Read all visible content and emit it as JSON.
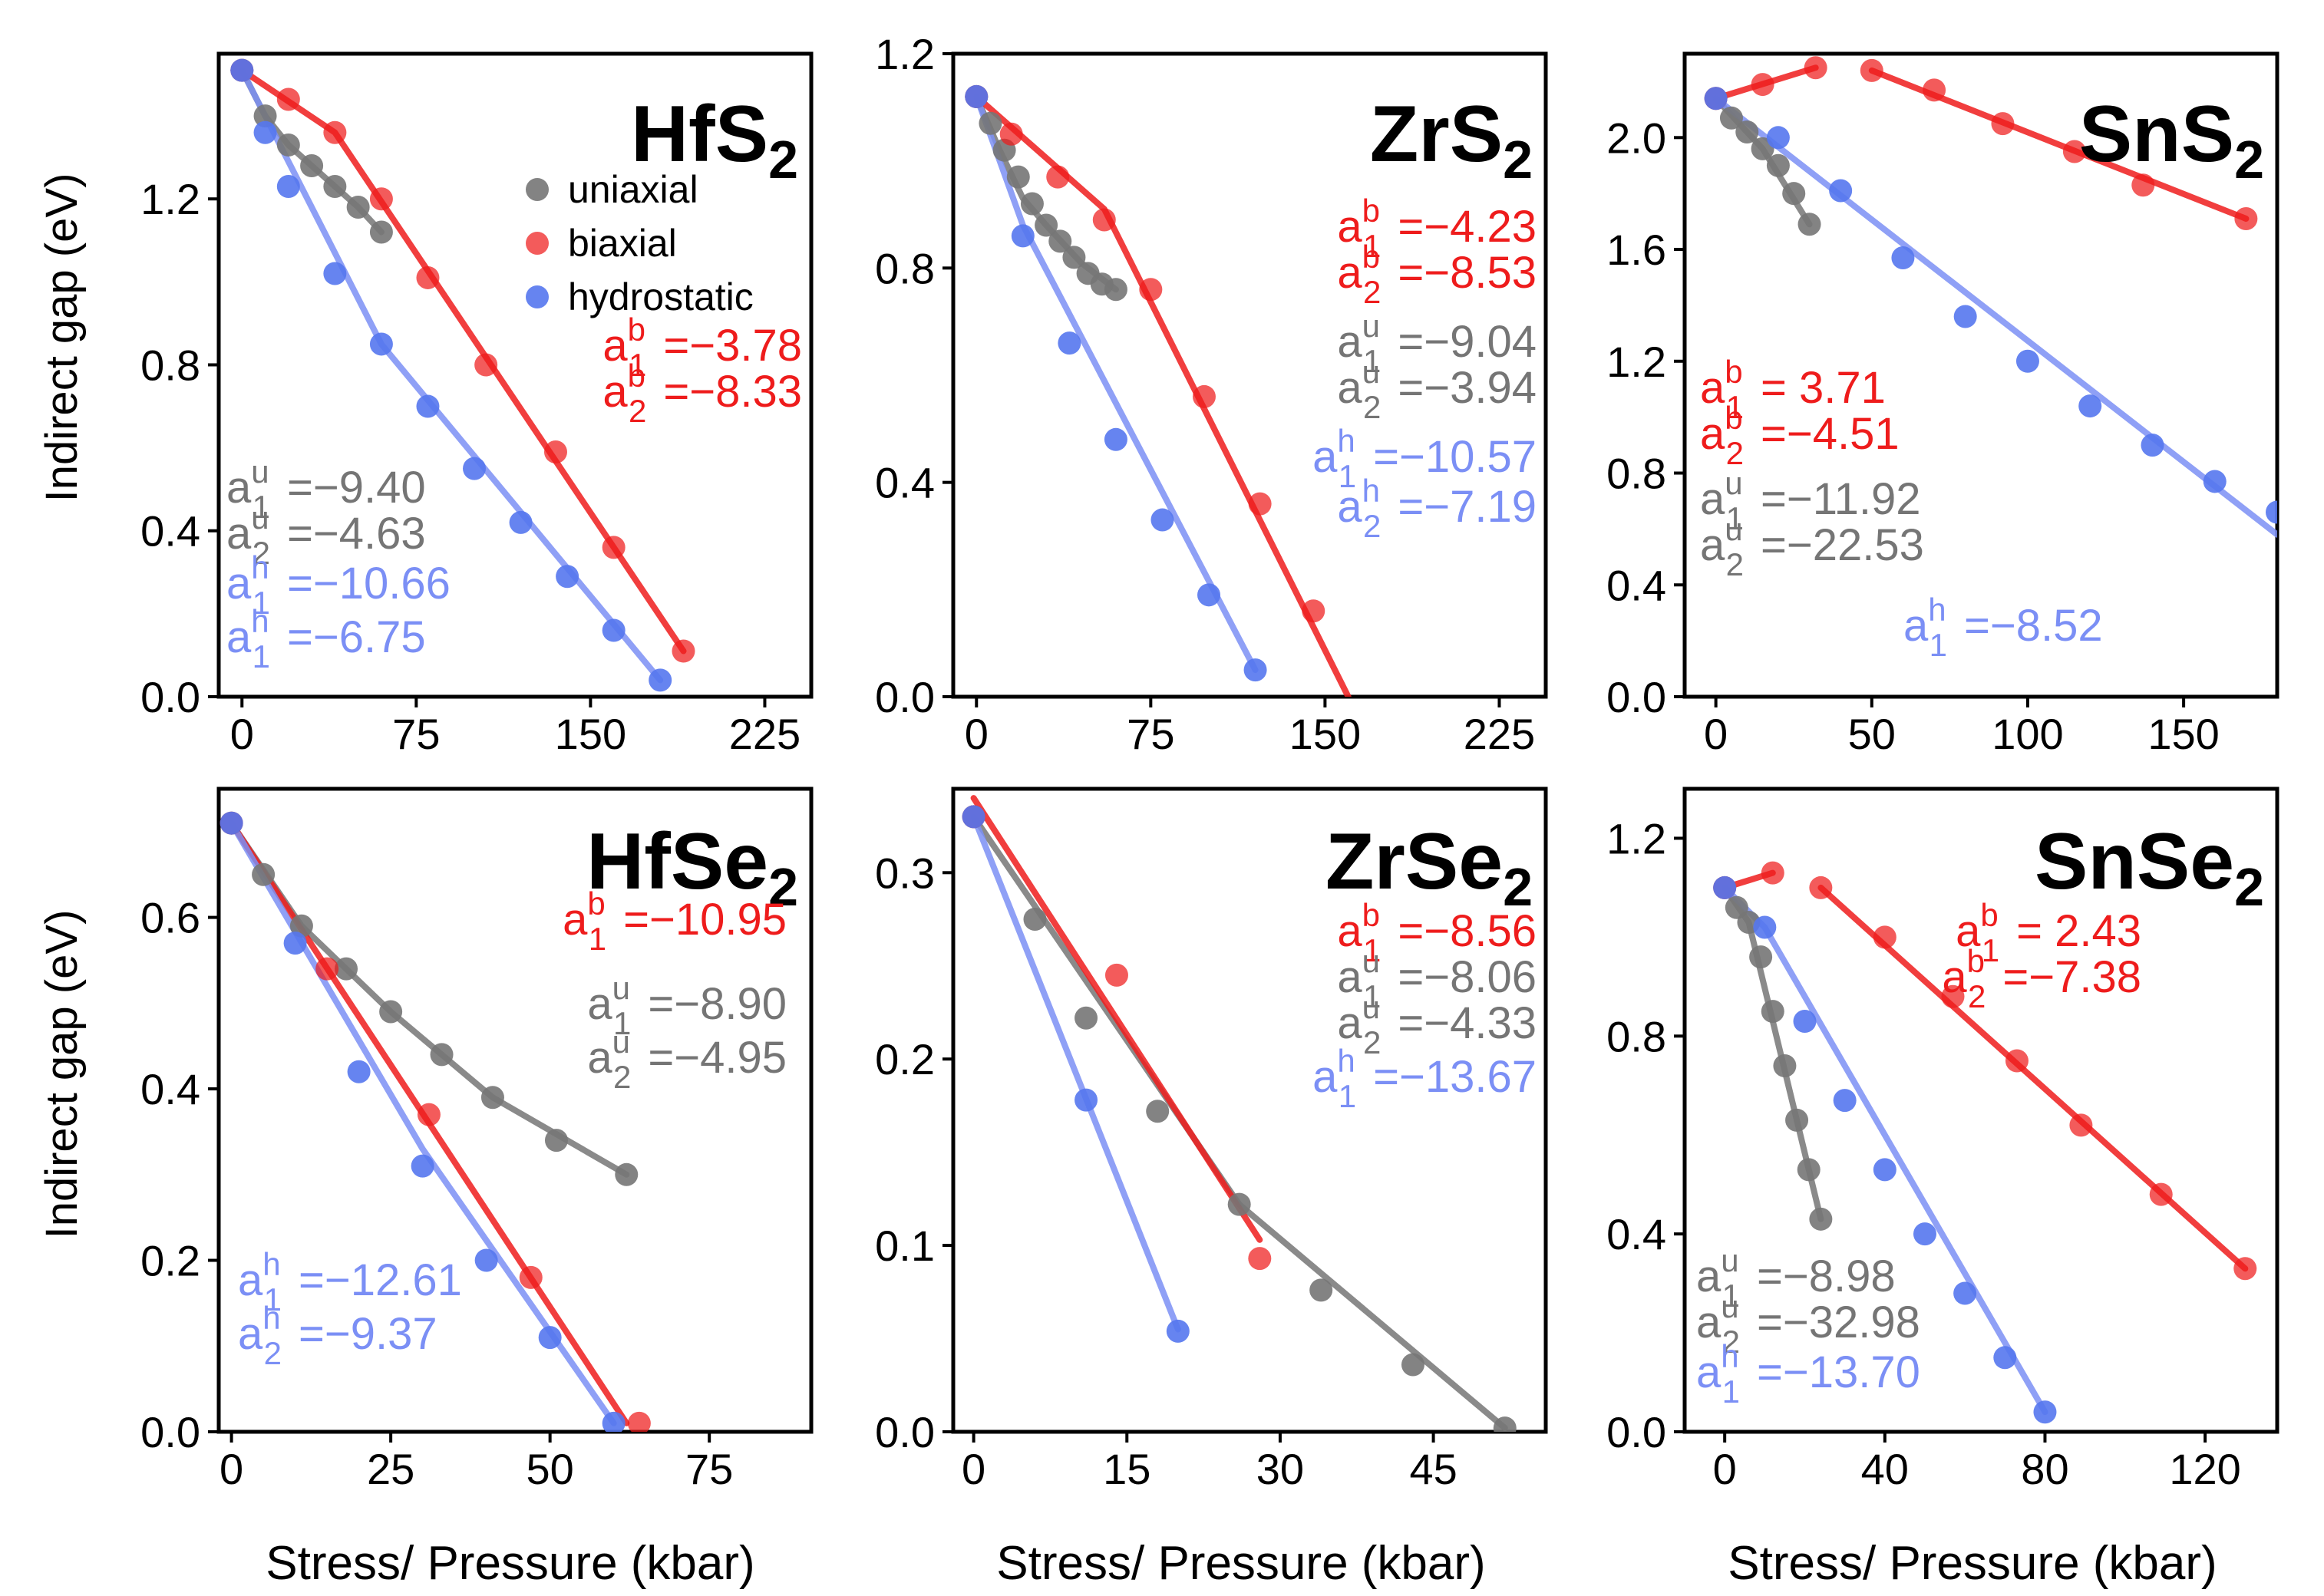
{
  "figure": {
    "ylabel": "Indirect gap (eV)",
    "xlabel": "Stress/ Pressure (kbar)",
    "legend": {
      "uniaxial": "uniaxial",
      "biaxial": "biaxial",
      "hydrostatic": "hydrostatic"
    }
  },
  "colors": {
    "uniaxial": "#757575",
    "biaxial": "#ee1c1c",
    "hydrostatic": "#5577ee",
    "hydro_fit": "#7b8ff5"
  },
  "chart_data": [
    {
      "type": "scatter",
      "title": "HfS2",
      "title_base": "HfS",
      "title_sub": "2",
      "xlabel": "Stress/ Pressure (kbar)",
      "ylabel": "Indirect gap (eV)",
      "xlim": [
        -10,
        245
      ],
      "ylim": [
        0.0,
        1.55
      ],
      "xticks": [
        0,
        75,
        150,
        225
      ],
      "yticks": [
        0.0,
        0.4,
        0.8,
        1.2
      ],
      "legend": true,
      "series": [
        {
          "name": "uniaxial",
          "x": [
            0,
            10,
            20,
            30,
            40,
            50,
            60
          ],
          "y": [
            1.51,
            1.4,
            1.33,
            1.28,
            1.23,
            1.18,
            1.12
          ],
          "fit": [
            [
              0,
              1.51
            ],
            [
              10,
              1.4
            ],
            [
              20,
              1.33
            ],
            [
              30,
              1.28
            ],
            [
              40,
              1.23
            ],
            [
              50,
              1.18
            ],
            [
              60,
              1.12
            ]
          ]
        },
        {
          "name": "biaxial",
          "x": [
            0,
            20,
            40,
            60,
            80,
            105,
            135,
            160,
            190
          ],
          "y": [
            1.51,
            1.44,
            1.36,
            1.2,
            1.01,
            0.8,
            0.59,
            0.36,
            0.11
          ],
          "fit": [
            [
              0,
              1.51
            ],
            [
              40,
              1.36
            ],
            [
              190,
              0.11
            ]
          ]
        },
        {
          "name": "hydrostatic",
          "x": [
            0,
            10,
            20,
            40,
            60,
            80,
            100,
            120,
            140,
            160,
            180
          ],
          "y": [
            1.51,
            1.36,
            1.23,
            1.02,
            0.85,
            0.7,
            0.55,
            0.42,
            0.29,
            0.16,
            0.04
          ],
          "fit": [
            [
              0,
              1.51
            ],
            [
              60,
              0.85
            ],
            [
              180,
              0.04
            ]
          ]
        }
      ],
      "annotations": [
        {
          "sym": "a",
          "sup": "b",
          "sub": "1",
          "value": "=−3.78",
          "series": "biaxial"
        },
        {
          "sym": "a",
          "sup": "b",
          "sub": "2",
          "value": "=−8.33",
          "series": "biaxial"
        },
        {
          "sym": "a",
          "sup": "u",
          "sub": "1",
          "value": "=−9.40",
          "series": "uniaxial"
        },
        {
          "sym": "a",
          "sup": "u",
          "sub": "2",
          "value": "=−4.63",
          "series": "uniaxial"
        },
        {
          "sym": "a",
          "sup": "h",
          "sub": "1",
          "value": "=−10.66",
          "series": "hydrostatic"
        },
        {
          "sym": "a",
          "sup": "h",
          "sub": "1",
          "value": "=−6.75",
          "series": "hydrostatic"
        }
      ]
    },
    {
      "type": "scatter",
      "title": "ZrS2",
      "title_base": "ZrS",
      "title_sub": "2",
      "xlabel": "Stress/ Pressure (kbar)",
      "ylabel": "Indirect gap (eV)",
      "xlim": [
        -10,
        245
      ],
      "ylim": [
        0.0,
        1.2
      ],
      "xticks": [
        0,
        75,
        150,
        225
      ],
      "yticks": [
        0.0,
        0.4,
        0.8,
        1.2
      ],
      "legend": false,
      "series": [
        {
          "name": "uniaxial",
          "x": [
            0,
            6,
            12,
            18,
            24,
            30,
            36,
            42,
            48,
            54,
            60
          ],
          "y": [
            1.12,
            1.07,
            1.02,
            0.97,
            0.92,
            0.88,
            0.85,
            0.82,
            0.79,
            0.77,
            0.76
          ],
          "fit": [
            [
              0,
              1.12
            ],
            [
              10,
              1.02
            ],
            [
              20,
              0.93
            ],
            [
              30,
              0.88
            ],
            [
              45,
              0.81
            ],
            [
              60,
              0.76
            ]
          ]
        },
        {
          "name": "biaxial",
          "x": [
            0,
            15,
            35,
            55,
            75,
            98,
            122,
            145
          ],
          "y": [
            1.12,
            1.05,
            0.97,
            0.89,
            0.76,
            0.56,
            0.36,
            0.16
          ],
          "fit": [
            [
              0,
              1.12
            ],
            [
              55,
              0.91
            ],
            [
              160,
              0.0
            ]
          ]
        },
        {
          "name": "hydrostatic",
          "x": [
            0,
            20,
            40,
            60,
            80,
            100,
            120
          ],
          "y": [
            1.12,
            0.86,
            0.66,
            0.48,
            0.33,
            0.19,
            0.05
          ],
          "fit": [
            [
              0,
              1.12
            ],
            [
              20,
              0.88
            ],
            [
              120,
              0.05
            ]
          ]
        }
      ],
      "annotations": [
        {
          "sym": "a",
          "sup": "b",
          "sub": "1",
          "value": "=−4.23",
          "series": "biaxial"
        },
        {
          "sym": "a",
          "sup": "b",
          "sub": "2",
          "value": "=−8.53",
          "series": "biaxial"
        },
        {
          "sym": "a",
          "sup": "u",
          "sub": "1",
          "value": "=−9.04",
          "series": "uniaxial"
        },
        {
          "sym": "a",
          "sup": "u",
          "sub": "2",
          "value": "=−3.94",
          "series": "uniaxial"
        },
        {
          "sym": "a",
          "sup": "h",
          "sub": "1",
          "value": "=−10.57",
          "series": "hydrostatic"
        },
        {
          "sym": "a",
          "sup": "h",
          "sub": "2",
          "value": "=−7.19",
          "series": "hydrostatic"
        }
      ]
    },
    {
      "type": "scatter",
      "title": "SnS2",
      "title_base": "SnS",
      "title_sub": "2",
      "xlabel": "Stress/ Pressure (kbar)",
      "ylabel": "Indirect gap (eV)",
      "xlim": [
        -10,
        180
      ],
      "ylim": [
        0.0,
        2.3
      ],
      "xticks": [
        0,
        50,
        100,
        150
      ],
      "yticks": [
        0.0,
        0.4,
        0.8,
        1.2,
        1.6,
        2.0
      ],
      "legend": false,
      "series": [
        {
          "name": "uniaxial",
          "x": [
            0,
            5,
            10,
            15,
            20,
            25,
            30
          ],
          "y": [
            2.14,
            2.07,
            2.02,
            1.96,
            1.9,
            1.8,
            1.69
          ],
          "fit": [
            [
              0,
              2.14
            ],
            [
              15,
              1.96
            ],
            [
              30,
              1.69
            ]
          ]
        },
        {
          "name": "biaxial",
          "x": [
            0,
            15,
            32,
            50,
            70,
            92,
            115,
            137,
            170
          ],
          "y": [
            2.14,
            2.19,
            2.25,
            2.24,
            2.17,
            2.05,
            1.95,
            1.83,
            1.71
          ],
          "fit": [
            [
              0,
              2.14
            ],
            [
              32,
              2.25
            ]
          ],
          "fit2": [
            [
              50,
              2.24
            ],
            [
              170,
              1.71
            ]
          ]
        },
        {
          "name": "hydrostatic",
          "x": [
            0,
            20,
            40,
            60,
            80,
            100,
            120,
            140,
            160,
            180
          ],
          "y": [
            2.14,
            2.0,
            1.81,
            1.57,
            1.36,
            1.2,
            1.04,
            0.9,
            0.77,
            0.66
          ],
          "fit": [
            [
              0,
              2.14
            ],
            [
              180,
              0.58
            ]
          ]
        }
      ],
      "annotations": [
        {
          "sym": "a",
          "sup": "b",
          "sub": "1",
          "value": "= 3.71",
          "series": "biaxial"
        },
        {
          "sym": "a",
          "sup": "b",
          "sub": "2",
          "value": "=−4.51",
          "series": "biaxial"
        },
        {
          "sym": "a",
          "sup": "u",
          "sub": "1",
          "value": "=−11.92",
          "series": "uniaxial"
        },
        {
          "sym": "a",
          "sup": "u",
          "sub": "2",
          "value": "=−22.53",
          "series": "uniaxial"
        },
        {
          "sym": "a",
          "sup": "h",
          "sub": "1",
          "value": "=−8.52",
          "series": "hydrostatic"
        }
      ]
    },
    {
      "type": "scatter",
      "title": "HfSe2",
      "title_base": "HfSe",
      "title_sub": "2",
      "xlabel": "Stress/ Pressure (kbar)",
      "ylabel": "Indirect gap (eV)",
      "xlim": [
        -2,
        91
      ],
      "ylim": [
        0.0,
        0.75
      ],
      "xticks": [
        0,
        25,
        50,
        75
      ],
      "yticks": [
        0.0,
        0.2,
        0.4,
        0.6
      ],
      "legend": false,
      "series": [
        {
          "name": "uniaxial",
          "x": [
            0,
            5,
            11,
            18,
            25,
            33,
            41,
            51,
            62
          ],
          "y": [
            0.71,
            0.65,
            0.59,
            0.54,
            0.49,
            0.44,
            0.39,
            0.34,
            0.3
          ],
          "fit": [
            [
              0,
              0.71
            ],
            [
              11,
              0.59
            ],
            [
              25,
              0.49
            ],
            [
              41,
              0.39
            ],
            [
              62,
              0.3
            ]
          ]
        },
        {
          "name": "biaxial",
          "x": [
            0,
            15,
            31,
            47,
            64
          ],
          "y": [
            0.71,
            0.54,
            0.37,
            0.18,
            0.01
          ],
          "fit": [
            [
              0,
              0.71
            ],
            [
              62,
              0.01
            ]
          ]
        },
        {
          "name": "hydrostatic",
          "x": [
            0,
            10,
            20,
            30,
            40,
            50,
            60
          ],
          "y": [
            0.71,
            0.57,
            0.42,
            0.31,
            0.2,
            0.11,
            0.01
          ],
          "fit": [
            [
              0,
              0.71
            ],
            [
              30,
              0.33
            ],
            [
              60,
              0.01
            ]
          ]
        }
      ],
      "annotations": [
        {
          "sym": "a",
          "sup": "b",
          "sub": "1",
          "value": "=−10.95",
          "series": "biaxial"
        },
        {
          "sym": "a",
          "sup": "u",
          "sub": "1",
          "value": "=−8.90",
          "series": "uniaxial"
        },
        {
          "sym": "a",
          "sup": "u",
          "sub": "2",
          "value": "=−4.95",
          "series": "uniaxial"
        },
        {
          "sym": "a",
          "sup": "h",
          "sub": "1",
          "value": "=−12.61",
          "series": "hydrostatic"
        },
        {
          "sym": "a",
          "sup": "h",
          "sub": "2",
          "value": "=−9.37",
          "series": "hydrostatic"
        }
      ]
    },
    {
      "type": "scatter",
      "title": "ZrSe2",
      "title_base": "ZrSe",
      "title_sub": "2",
      "xlabel": "Stress/ Pressure (kbar)",
      "ylabel": "Indirect gap (eV)",
      "xlim": [
        -2,
        56
      ],
      "ylim": [
        0.0,
        0.345
      ],
      "xticks": [
        0,
        15,
        30,
        45
      ],
      "yticks": [
        0.0,
        0.1,
        0.2,
        0.3
      ],
      "legend": false,
      "series": [
        {
          "name": "uniaxial",
          "x": [
            0,
            6,
            11,
            18,
            26,
            34,
            43,
            52
          ],
          "y": [
            0.33,
            0.275,
            0.222,
            0.172,
            0.122,
            0.076,
            0.036,
            0.002
          ],
          "fit": [
            [
              0,
              0.33
            ],
            [
              26,
              0.122
            ],
            [
              52,
              0.002
            ]
          ]
        },
        {
          "name": "biaxial",
          "x": [
            0,
            14,
            28
          ],
          "y": [
            0.33,
            0.245,
            0.093
          ],
          "fit": [
            [
              0,
              0.34
            ],
            [
              28,
              0.103
            ]
          ]
        },
        {
          "name": "hydrostatic",
          "x": [
            0,
            11,
            20
          ],
          "y": [
            0.33,
            0.178,
            0.054
          ],
          "fit": [
            [
              0,
              0.33
            ],
            [
              20,
              0.055
            ]
          ]
        }
      ],
      "annotations": [
        {
          "sym": "a",
          "sup": "b",
          "sub": "1",
          "value": "=−8.56",
          "series": "biaxial"
        },
        {
          "sym": "a",
          "sup": "u",
          "sub": "1",
          "value": "=−8.06",
          "series": "uniaxial"
        },
        {
          "sym": "a",
          "sup": "u",
          "sub": "2",
          "value": "=−4.33",
          "series": "uniaxial"
        },
        {
          "sym": "a",
          "sup": "h",
          "sub": "1",
          "value": "=−13.67",
          "series": "hydrostatic"
        }
      ]
    },
    {
      "type": "scatter",
      "title": "SnSe2",
      "title_base": "SnSe",
      "title_sub": "2",
      "xlabel": "Stress/ Pressure (kbar)",
      "ylabel": "Indirect gap (eV)",
      "xlim": [
        -10,
        138
      ],
      "ylim": [
        0.0,
        1.3
      ],
      "xticks": [
        0,
        40,
        80,
        120
      ],
      "yticks": [
        0.0,
        0.4,
        0.8,
        1.2
      ],
      "legend": false,
      "series": [
        {
          "name": "uniaxial",
          "x": [
            0,
            3,
            6,
            9,
            12,
            15,
            18,
            21,
            24
          ],
          "y": [
            1.1,
            1.06,
            1.03,
            0.96,
            0.85,
            0.74,
            0.63,
            0.53,
            0.43
          ],
          "fit": [
            [
              0,
              1.1
            ],
            [
              6,
              1.03
            ],
            [
              24,
              0.43
            ]
          ]
        },
        {
          "name": "biaxial",
          "x": [
            0,
            12,
            24,
            40,
            57,
            73,
            89,
            109,
            130
          ],
          "y": [
            1.1,
            1.13,
            1.1,
            1.0,
            0.88,
            0.75,
            0.62,
            0.48,
            0.33
          ],
          "fit": [
            [
              0,
              1.1
            ],
            [
              12,
              1.13
            ]
          ],
          "fit2": [
            [
              24,
              1.1
            ],
            [
              130,
              0.33
            ]
          ]
        },
        {
          "name": "hydrostatic",
          "x": [
            0,
            10,
            20,
            30,
            40,
            50,
            60,
            70,
            80
          ],
          "y": [
            1.1,
            1.02,
            0.83,
            0.67,
            0.53,
            0.4,
            0.28,
            0.15,
            0.04
          ],
          "fit": [
            [
              0,
              1.1
            ],
            [
              10,
              1.02
            ],
            [
              80,
              0.04
            ]
          ]
        }
      ],
      "annotations": [
        {
          "sym": "a",
          "sup": "b",
          "sub": "1",
          "value": "= 2.43",
          "series": "biaxial"
        },
        {
          "sym": "a",
          "sup": "b",
          "sub": "2",
          "value": "=−7.38",
          "series": "biaxial"
        },
        {
          "sym": "a",
          "sup": "u",
          "sub": "1",
          "value": "=−8.98",
          "series": "uniaxial"
        },
        {
          "sym": "a",
          "sup": "u",
          "sub": "2",
          "value": "=−32.98",
          "series": "uniaxial"
        },
        {
          "sym": "a",
          "sup": "h",
          "sub": "1",
          "value": "=−13.70",
          "series": "hydrostatic"
        }
      ]
    }
  ]
}
